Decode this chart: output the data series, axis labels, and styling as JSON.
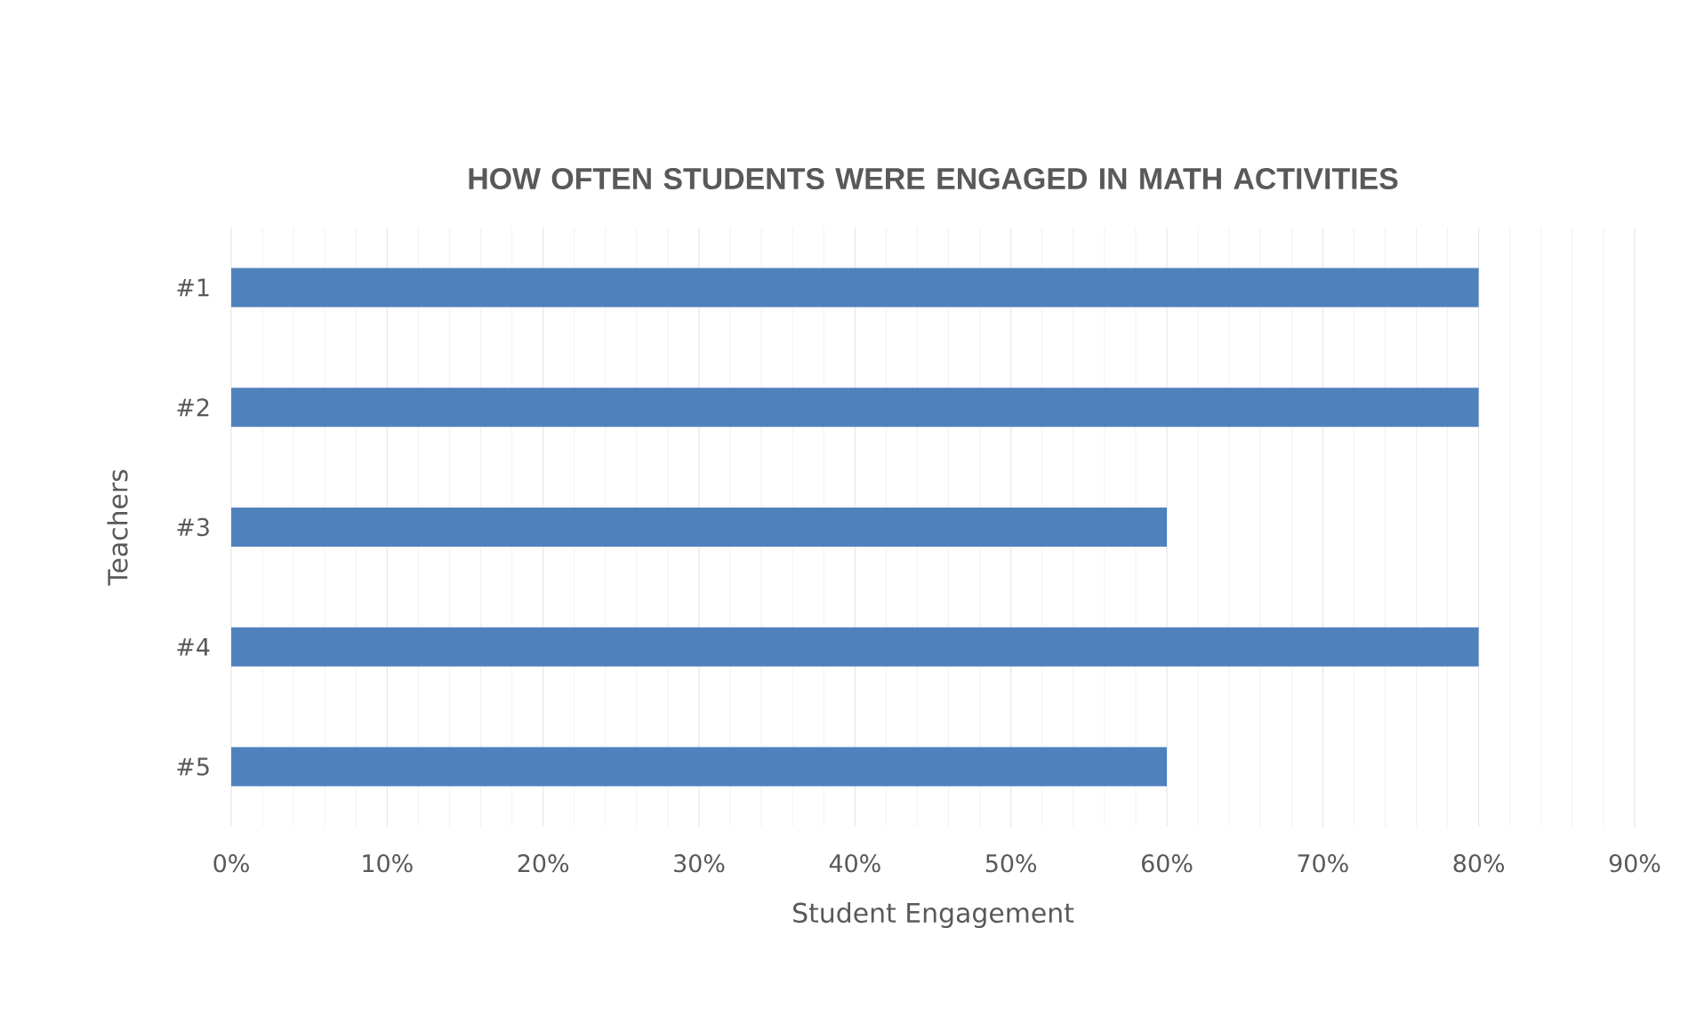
{
  "chart_data": {
    "type": "bar",
    "orientation": "horizontal",
    "title": "HOW OFTEN STUDENTS WERE ENGAGED IN MATH ACTIVITIES",
    "xlabel": "Student Engagement",
    "ylabel": "Teachers",
    "categories": [
      "#1",
      "#2",
      "#3",
      "#4",
      "#5"
    ],
    "values": [
      80,
      80,
      60,
      80,
      60
    ],
    "color": "#4f81bd",
    "xlim": [
      0,
      90
    ],
    "xticks": [
      {
        "value": 0,
        "label": "0%"
      },
      {
        "value": 10,
        "label": "10%"
      },
      {
        "value": 20,
        "label": "20%"
      },
      {
        "value": 30,
        "label": "30%"
      },
      {
        "value": 40,
        "label": "40%"
      },
      {
        "value": 50,
        "label": "50%"
      },
      {
        "value": 60,
        "label": "60%"
      },
      {
        "value": 70,
        "label": "70%"
      },
      {
        "value": 80,
        "label": "80%"
      },
      {
        "value": 90,
        "label": "90%"
      }
    ],
    "grid": "x"
  }
}
